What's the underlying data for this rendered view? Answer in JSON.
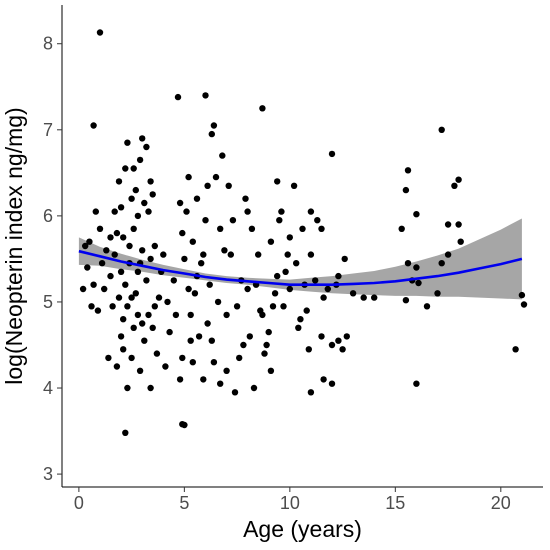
{
  "chart_data": {
    "type": "scatter",
    "title": "",
    "xlabel": "Age (years)",
    "ylabel": "log(Neopterin index ng/mg)",
    "xlim": [
      -0.8,
      22.0
    ],
    "ylim": [
      2.85,
      8.45
    ],
    "xticks": [
      0,
      5,
      10,
      15,
      20
    ],
    "yticks": [
      3,
      4,
      5,
      6,
      7,
      8
    ],
    "grid": false,
    "point_color": "#000000",
    "fit_color": "#0000ee",
    "band_color": "#a6a6a6",
    "points": [
      [
        1.0,
        8.13
      ],
      [
        0.7,
        7.05
      ],
      [
        2.2,
        3.48
      ],
      [
        4.9,
        3.58
      ],
      [
        5.0,
        3.57
      ],
      [
        4.7,
        7.38
      ],
      [
        6.0,
        7.4
      ],
      [
        8.7,
        7.25
      ],
      [
        12.0,
        6.72
      ],
      [
        17.2,
        7.0
      ],
      [
        20.7,
        4.45
      ],
      [
        21.0,
        5.08
      ],
      [
        21.1,
        4.97
      ],
      [
        16.0,
        4.05
      ],
      [
        15.6,
        6.53
      ],
      [
        15.5,
        6.3
      ],
      [
        16.0,
        6.02
      ],
      [
        15.3,
        5.85
      ],
      [
        17.8,
        6.35
      ],
      [
        18.0,
        6.42
      ],
      [
        17.5,
        5.9
      ],
      [
        18.1,
        5.7
      ],
      [
        17.5,
        5.55
      ],
      [
        18.0,
        5.9
      ],
      [
        16.1,
        5.22
      ],
      [
        15.8,
        5.25
      ],
      [
        15.5,
        5.02
      ],
      [
        17.0,
        5.1
      ],
      [
        16.0,
        5.4
      ],
      [
        15.6,
        5.45
      ],
      [
        17.2,
        5.45
      ],
      [
        14.0,
        5.05
      ],
      [
        13.0,
        5.1
      ],
      [
        12.3,
        4.55
      ],
      [
        11.5,
        4.6
      ],
      [
        12.0,
        4.5
      ],
      [
        12.5,
        4.45
      ],
      [
        11.6,
        4.1
      ],
      [
        12.0,
        4.05
      ],
      [
        11.0,
        3.95
      ],
      [
        12.7,
        4.6
      ],
      [
        11.2,
        5.25
      ],
      [
        11.0,
        5.55
      ],
      [
        11.5,
        5.85
      ],
      [
        11.3,
        5.95
      ],
      [
        11.0,
        6.05
      ],
      [
        12.6,
        5.5
      ],
      [
        12.3,
        5.3
      ],
      [
        11.6,
        5.05
      ],
      [
        10.8,
        4.9
      ],
      [
        10.5,
        4.8
      ],
      [
        10.2,
        6.35
      ],
      [
        10.0,
        5.75
      ],
      [
        9.4,
        6.4
      ],
      [
        9.6,
        6.05
      ],
      [
        9.1,
        5.7
      ],
      [
        9.4,
        5.3
      ],
      [
        9.5,
        5.95
      ],
      [
        9.2,
        4.95
      ],
      [
        9.0,
        4.65
      ],
      [
        8.8,
        4.4
      ],
      [
        9.1,
        4.2
      ],
      [
        8.6,
        4.9
      ],
      [
        8.4,
        5.2
      ],
      [
        8.2,
        5.85
      ],
      [
        8.0,
        6.05
      ],
      [
        7.8,
        4.5
      ],
      [
        7.5,
        4.95
      ],
      [
        7.2,
        5.55
      ],
      [
        6.8,
        6.7
      ],
      [
        6.5,
        6.45
      ],
      [
        6.4,
        7.05
      ],
      [
        6.3,
        6.95
      ],
      [
        6.1,
        6.35
      ],
      [
        6.0,
        5.95
      ],
      [
        5.8,
        5.45
      ],
      [
        5.5,
        5.1
      ],
      [
        5.3,
        4.85
      ],
      [
        5.7,
        4.6
      ],
      [
        6.1,
        4.75
      ],
      [
        6.4,
        4.3
      ],
      [
        6.7,
        4.05
      ],
      [
        7.0,
        4.2
      ],
      [
        7.4,
        3.95
      ],
      [
        8.3,
        4.0
      ],
      [
        7.6,
        4.35
      ],
      [
        8.1,
        4.6
      ],
      [
        8.9,
        4.5
      ],
      [
        9.7,
        4.95
      ],
      [
        10.0,
        5.15
      ],
      [
        10.3,
        5.45
      ],
      [
        10.6,
        5.85
      ],
      [
        11.8,
        5.15
      ],
      [
        10.9,
        4.45
      ],
      [
        9.8,
        5.35
      ],
      [
        7.3,
        5.95
      ],
      [
        6.9,
        5.6
      ],
      [
        7.1,
        6.35
      ],
      [
        5.2,
        6.45
      ],
      [
        5.1,
        6.05
      ],
      [
        5.4,
        5.7
      ],
      [
        5.6,
        5.3
      ],
      [
        5.0,
        5.5
      ],
      [
        5.3,
        4.55
      ],
      [
        5.9,
        4.1
      ],
      [
        4.8,
        4.1
      ],
      [
        4.9,
        4.35
      ],
      [
        4.6,
        4.85
      ],
      [
        4.5,
        5.25
      ],
      [
        4.9,
        5.8
      ],
      [
        4.8,
        6.15
      ],
      [
        3.0,
        6.9
      ],
      [
        3.2,
        6.8
      ],
      [
        2.9,
        6.65
      ],
      [
        2.6,
        6.55
      ],
      [
        2.3,
        6.85
      ],
      [
        3.4,
        6.4
      ],
      [
        3.3,
        6.05
      ],
      [
        3.6,
        5.65
      ],
      [
        3.9,
        5.35
      ],
      [
        3.8,
        5.05
      ],
      [
        3.5,
        4.7
      ],
      [
        3.7,
        4.4
      ],
      [
        3.4,
        4.0
      ],
      [
        3.1,
        4.55
      ],
      [
        2.8,
        4.85
      ],
      [
        2.7,
        5.1
      ],
      [
        2.4,
        5.45
      ],
      [
        2.1,
        5.75
      ],
      [
        2.0,
        6.1
      ],
      [
        1.9,
        6.4
      ],
      [
        2.2,
        5.2
      ],
      [
        2.3,
        4.95
      ],
      [
        2.0,
        4.6
      ],
      [
        1.8,
        4.25
      ],
      [
        2.3,
        4.0
      ],
      [
        2.5,
        4.35
      ],
      [
        1.6,
        4.95
      ],
      [
        1.5,
        5.3
      ],
      [
        1.3,
        5.6
      ],
      [
        1.0,
        5.85
      ],
      [
        0.8,
        6.05
      ],
      [
        0.5,
        5.7
      ],
      [
        0.4,
        5.4
      ],
      [
        0.7,
        5.2
      ],
      [
        0.6,
        4.95
      ],
      [
        1.2,
        5.15
      ],
      [
        1.4,
        4.35
      ],
      [
        1.1,
        5.45
      ],
      [
        1.7,
        5.55
      ],
      [
        1.9,
        5.05
      ],
      [
        2.1,
        4.8
      ],
      [
        2.6,
        5.85
      ],
      [
        2.8,
        5.35
      ],
      [
        3.0,
        5.6
      ],
      [
        3.2,
        5.25
      ],
      [
        2.5,
        6.2
      ],
      [
        2.7,
        6.3
      ],
      [
        3.1,
        6.15
      ],
      [
        2.9,
        4.2
      ],
      [
        3.6,
        4.95
      ],
      [
        4.0,
        5.55
      ],
      [
        4.2,
        5.0
      ],
      [
        4.3,
        4.65
      ],
      [
        4.1,
        4.25
      ],
      [
        0.2,
        5.15
      ],
      [
        0.3,
        5.65
      ],
      [
        0.9,
        4.9
      ],
      [
        1.8,
        5.8
      ],
      [
        2.4,
        5.65
      ],
      [
        2.6,
        4.7
      ],
      [
        3.3,
        4.85
      ],
      [
        3.5,
        6.25
      ],
      [
        2.2,
        6.55
      ],
      [
        6.2,
        5.2
      ],
      [
        6.6,
        5.0
      ],
      [
        7.7,
        5.25
      ],
      [
        8.5,
        5.55
      ],
      [
        9.3,
        5.1
      ],
      [
        10.4,
        4.7
      ],
      [
        7.9,
        6.2
      ],
      [
        6.7,
        5.85
      ],
      [
        5.6,
        6.2
      ],
      [
        5.4,
        4.3
      ],
      [
        8.7,
        4.85
      ],
      [
        9.9,
        5.55
      ],
      [
        10.7,
        5.2
      ],
      [
        12.2,
        5.2
      ],
      [
        13.5,
        5.05
      ],
      [
        16.5,
        4.95
      ],
      [
        2.0,
        5.35
      ],
      [
        2.5,
        5.05
      ],
      [
        3.0,
        4.75
      ],
      [
        1.7,
        6.05
      ],
      [
        2.8,
        6.0
      ],
      [
        3.4,
        5.5
      ],
      [
        2.1,
        4.45
      ],
      [
        1.5,
        5.75
      ],
      [
        2.9,
        5.45
      ],
      [
        6.3,
        4.55
      ],
      [
        7.0,
        4.85
      ],
      [
        8.0,
        5.15
      ],
      [
        5.2,
        5.15
      ],
      [
        5.9,
        5.55
      ]
    ],
    "fit": {
      "label": "",
      "x": [
        0,
        1,
        2,
        3,
        4,
        5,
        6,
        7,
        8,
        9,
        10,
        11,
        12,
        13,
        14,
        15,
        16,
        17,
        18,
        19,
        20,
        21
      ],
      "y": [
        5.59,
        5.53,
        5.47,
        5.42,
        5.37,
        5.33,
        5.29,
        5.26,
        5.24,
        5.22,
        5.2,
        5.2,
        5.2,
        5.21,
        5.22,
        5.24,
        5.27,
        5.3,
        5.34,
        5.39,
        5.44,
        5.5
      ],
      "lower": [
        5.43,
        5.42,
        5.38,
        5.35,
        5.31,
        5.28,
        5.25,
        5.22,
        5.2,
        5.17,
        5.14,
        5.12,
        5.1,
        5.09,
        5.08,
        5.07,
        5.07,
        5.06,
        5.06,
        5.05,
        5.04,
        5.03
      ],
      "upper": [
        5.75,
        5.64,
        5.56,
        5.49,
        5.43,
        5.38,
        5.33,
        5.3,
        5.28,
        5.27,
        5.26,
        5.28,
        5.3,
        5.33,
        5.36,
        5.41,
        5.47,
        5.54,
        5.62,
        5.73,
        5.84,
        5.97
      ]
    }
  }
}
